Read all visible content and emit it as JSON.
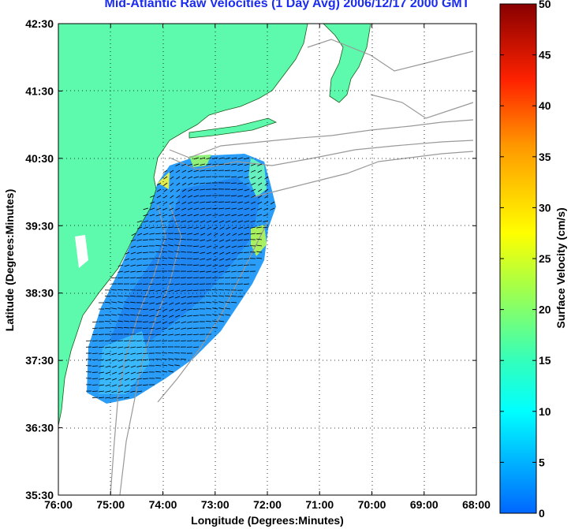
{
  "title": "Mid-Atlantic Raw Velocities (1 Day Avg) 2006/12/17 2000 GMT",
  "x_axis": {
    "label": "Longitude (Degrees:Minutes)",
    "ticks": [
      "76:00",
      "75:00",
      "74:00",
      "73:00",
      "72:00",
      "71:00",
      "70:00",
      "69:00",
      "68:00"
    ]
  },
  "y_axis": {
    "label": "Latitude (Degrees:Minutes)",
    "ticks": [
      "42:30",
      "41:30",
      "40:30",
      "39:30",
      "38:30",
      "37:30",
      "36:30",
      "35:30"
    ]
  },
  "colorbar": {
    "label": "Surface Velocity (cm/s)",
    "ticks": [
      "50",
      "45",
      "40",
      "35",
      "30",
      "25",
      "20",
      "15",
      "10",
      "5",
      "0"
    ],
    "range": [
      0,
      50
    ],
    "colors": [
      "#0066ff",
      "#00ccff",
      "#33ffcc",
      "#99ff66",
      "#ffff00",
      "#ffaa00",
      "#ff3300",
      "#cc0000",
      "#800000"
    ]
  },
  "colors": {
    "land": "#5dfaae",
    "coast_outline": "#1a5c1a",
    "bathymetry_contour": "#999999",
    "grid": "#000000",
    "title": "#1a2cf0"
  },
  "map": {
    "grid": "dotted",
    "lon_range": [
      -76,
      -68
    ],
    "lat_range": [
      35.5,
      42.5
    ]
  }
}
